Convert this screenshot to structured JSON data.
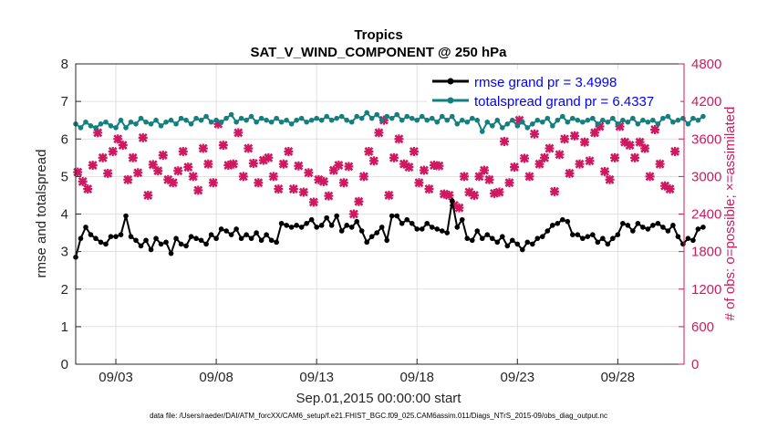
{
  "chart_data": {
    "type": "line",
    "title": "Tropics",
    "subtitle": "SAT_V_WIND_COMPONENT @ 250 hPa",
    "xlabel": "Sep.01,2015 00:00:00 start",
    "ylabel_left": "rmse and totalspread",
    "ylabel_right": "# of obs: o=possible; ×=assimilated",
    "xlim": [
      0,
      30.3
    ],
    "ylim_left": [
      0,
      8
    ],
    "ylim_right": [
      0,
      4800
    ],
    "x_ticks": [
      2,
      7,
      12,
      17,
      22,
      27
    ],
    "x_tick_labels": [
      "09/03",
      "09/08",
      "09/13",
      "09/18",
      "09/23",
      "09/28"
    ],
    "y_left_ticks": [
      "0",
      "1",
      "2",
      "3",
      "4",
      "5",
      "6",
      "7",
      "8"
    ],
    "y_right_ticks": [
      "0",
      "600",
      "1200",
      "1800",
      "2400",
      "3000",
      "3600",
      "4200",
      "4800"
    ],
    "grid": true,
    "legend_location": "top-right",
    "series": [
      {
        "name": "rmse grand pr = 3.4998",
        "axis": "left",
        "color": "#000000",
        "marker": "circle",
        "x_start": 0,
        "x_step": 0.25,
        "values": [
          2.85,
          3.35,
          3.65,
          3.45,
          3.35,
          3.25,
          3.2,
          3.4,
          3.4,
          3.45,
          3.95,
          3.4,
          3.3,
          3.15,
          3.3,
          3.05,
          3.35,
          3.2,
          3.25,
          2.95,
          3.35,
          3.2,
          3.15,
          3.4,
          3.35,
          3.3,
          3.2,
          3.45,
          3.35,
          3.6,
          3.55,
          3.45,
          3.6,
          3.35,
          3.45,
          3.35,
          3.5,
          3.3,
          3.45,
          3.3,
          3.25,
          3.75,
          3.7,
          3.65,
          3.7,
          3.65,
          3.75,
          3.85,
          3.65,
          3.7,
          3.9,
          3.7,
          3.95,
          3.55,
          3.7,
          3.65,
          3.8,
          3.55,
          3.25,
          3.4,
          3.5,
          3.65,
          3.3,
          3.95,
          3.95,
          3.75,
          3.85,
          3.75,
          3.6,
          3.6,
          3.75,
          3.65,
          3.6,
          3.55,
          3.5,
          4.35,
          3.65,
          3.85,
          3.35,
          3.3,
          3.55,
          3.35,
          3.45,
          3.35,
          3.25,
          3.4,
          3.15,
          3.3,
          3.2,
          3.05,
          3.25,
          3.2,
          3.35,
          3.4,
          3.55,
          3.7,
          3.75,
          3.85,
          3.8,
          3.45,
          3.45,
          3.35,
          3.4,
          3.45,
          3.25,
          3.35,
          3.2,
          3.35,
          3.45,
          3.75,
          3.7,
          3.55,
          3.75,
          3.65,
          3.6,
          3.7,
          3.75,
          3.65,
          3.55,
          3.7,
          3.4,
          3.2,
          3.35,
          3.3,
          3.6,
          3.65
        ]
      },
      {
        "name": "totalspread grand pr = 6.4337",
        "axis": "left",
        "color": "#108080",
        "marker": "circle",
        "x_start": 0,
        "x_step": 0.25,
        "values": [
          6.4,
          6.3,
          6.45,
          6.35,
          6.3,
          6.4,
          6.45,
          6.35,
          6.3,
          6.5,
          6.3,
          6.45,
          6.4,
          6.55,
          6.45,
          6.4,
          6.5,
          6.35,
          6.45,
          6.5,
          6.4,
          6.55,
          6.5,
          6.4,
          6.55,
          6.5,
          6.6,
          6.45,
          6.5,
          6.45,
          6.55,
          6.65,
          6.45,
          6.55,
          6.5,
          6.6,
          6.45,
          6.55,
          6.5,
          6.45,
          6.55,
          6.45,
          6.5,
          6.4,
          6.5,
          6.55,
          6.45,
          6.5,
          6.55,
          6.5,
          6.6,
          6.5,
          6.55,
          6.6,
          6.5,
          6.45,
          6.6,
          6.55,
          6.7,
          6.55,
          6.65,
          6.5,
          6.6,
          6.55,
          6.65,
          6.5,
          6.6,
          6.55,
          6.5,
          6.6,
          6.5,
          6.55,
          6.45,
          6.6,
          6.5,
          6.6,
          6.4,
          6.5,
          6.45,
          6.55,
          6.5,
          6.2,
          6.45,
          6.35,
          6.5,
          6.3,
          6.4,
          6.5,
          6.35,
          6.45,
          6.3,
          6.4,
          6.5,
          6.45,
          6.55,
          6.35,
          6.5,
          6.6,
          6.45,
          6.55,
          6.5,
          6.45,
          6.5,
          6.55,
          6.4,
          6.5,
          6.45,
          6.55,
          6.4,
          6.5,
          6.45,
          6.55,
          6.4,
          6.5,
          6.45,
          6.5,
          6.4,
          6.55,
          6.6,
          6.45,
          6.5,
          6.55,
          6.4,
          6.55,
          6.5,
          6.6
        ]
      },
      {
        "name": "# of obs assimilated",
        "axis": "right",
        "color": "#d01860",
        "marker": "x",
        "points": [
          [
            0.1,
            3070
          ],
          [
            0.35,
            2920
          ],
          [
            0.6,
            2800
          ],
          [
            0.85,
            3180
          ],
          [
            1.1,
            3700
          ],
          [
            1.35,
            3300
          ],
          [
            1.6,
            3050
          ],
          [
            1.85,
            3400
          ],
          [
            2.1,
            3600
          ],
          [
            2.35,
            3500
          ],
          [
            2.6,
            2950
          ],
          [
            2.85,
            3300
          ],
          [
            3.1,
            3060
          ],
          [
            3.35,
            3620
          ],
          [
            3.6,
            2700
          ],
          [
            3.85,
            3190
          ],
          [
            4.1,
            3090
          ],
          [
            4.35,
            3340
          ],
          [
            4.6,
            2950
          ],
          [
            4.85,
            2900
          ],
          [
            5.1,
            3090
          ],
          [
            5.35,
            3400
          ],
          [
            5.6,
            3150
          ],
          [
            5.85,
            3000
          ],
          [
            6.1,
            2780
          ],
          [
            6.35,
            3450
          ],
          [
            6.6,
            3200
          ],
          [
            6.85,
            2900
          ],
          [
            7.1,
            3840
          ],
          [
            7.35,
            3500
          ],
          [
            7.6,
            3180
          ],
          [
            7.85,
            3200
          ],
          [
            8.1,
            3700
          ],
          [
            8.35,
            3000
          ],
          [
            8.6,
            3450
          ],
          [
            8.85,
            3210
          ],
          [
            9.1,
            2900
          ],
          [
            9.35,
            3260
          ],
          [
            9.6,
            3300
          ],
          [
            9.85,
            3000
          ],
          [
            10.1,
            2800
          ],
          [
            10.35,
            3200
          ],
          [
            10.6,
            3400
          ],
          [
            10.85,
            2800
          ],
          [
            11.1,
            3170
          ],
          [
            11.35,
            2750
          ],
          [
            11.6,
            3060
          ],
          [
            11.85,
            2590
          ],
          [
            12.1,
            2950
          ],
          [
            12.35,
            2920
          ],
          [
            12.6,
            2690
          ],
          [
            12.85,
            3100
          ],
          [
            13.1,
            3180
          ],
          [
            13.35,
            2900
          ],
          [
            13.6,
            3160
          ],
          [
            13.85,
            2400
          ],
          [
            14.1,
            2600
          ],
          [
            14.35,
            3000
          ],
          [
            14.6,
            3400
          ],
          [
            14.85,
            3250
          ],
          [
            15.1,
            3700
          ],
          [
            15.35,
            3900
          ],
          [
            15.6,
            2700
          ],
          [
            15.85,
            3300
          ],
          [
            16.1,
            3600
          ],
          [
            16.35,
            3200
          ],
          [
            16.6,
            3150
          ],
          [
            16.85,
            3400
          ],
          [
            17.1,
            2900
          ],
          [
            17.35,
            3100
          ],
          [
            17.6,
            2800
          ],
          [
            17.85,
            3180
          ],
          [
            18.1,
            3170
          ],
          [
            18.35,
            2720
          ],
          [
            18.6,
            2700
          ],
          [
            18.85,
            2540
          ],
          [
            19.1,
            2500
          ],
          [
            19.35,
            3000
          ],
          [
            19.6,
            2750
          ],
          [
            19.85,
            2700
          ],
          [
            20.1,
            3000
          ],
          [
            20.35,
            3100
          ],
          [
            20.6,
            2950
          ],
          [
            20.85,
            2730
          ],
          [
            21.1,
            2750
          ],
          [
            21.35,
            3560
          ],
          [
            21.6,
            2900
          ],
          [
            21.85,
            3150
          ],
          [
            22.1,
            3900
          ],
          [
            22.35,
            3290
          ],
          [
            22.6,
            3000
          ],
          [
            22.85,
            3680
          ],
          [
            23.1,
            3200
          ],
          [
            23.35,
            3300
          ],
          [
            23.6,
            3450
          ],
          [
            23.85,
            2760
          ],
          [
            24.1,
            3350
          ],
          [
            24.35,
            3600
          ],
          [
            24.6,
            3050
          ],
          [
            24.85,
            3650
          ],
          [
            25.1,
            3200
          ],
          [
            25.35,
            3550
          ],
          [
            25.6,
            3250
          ],
          [
            25.85,
            3700
          ],
          [
            26.1,
            3800
          ],
          [
            26.35,
            3080
          ],
          [
            26.6,
            2950
          ],
          [
            26.85,
            3300
          ],
          [
            27.1,
            3800
          ],
          [
            27.35,
            3550
          ],
          [
            27.6,
            3500
          ],
          [
            27.85,
            3300
          ],
          [
            28.1,
            3550
          ],
          [
            28.35,
            3450
          ],
          [
            28.6,
            3000
          ],
          [
            28.85,
            3750
          ],
          [
            29.1,
            3200
          ],
          [
            29.35,
            2850
          ],
          [
            29.6,
            2800
          ],
          [
            29.85,
            3400
          ]
        ]
      }
    ],
    "legend_entries": [
      "rmse grand pr = 3.4998",
      "totalspread grand pr = 6.4337"
    ],
    "colors": {
      "left_axis": "#000000",
      "right_axis": "#d01860",
      "legend_text": "#0000ff",
      "grid": "#d8d8d8"
    },
    "footer": "data file: /Users/raeder/DAI/ATM_forcXX/CAM6_setup/f.e21.FHIST_BGC.f09_025.CAM6assim.011/Diags_NTrS_2015-09/obs_diag_output.nc"
  }
}
